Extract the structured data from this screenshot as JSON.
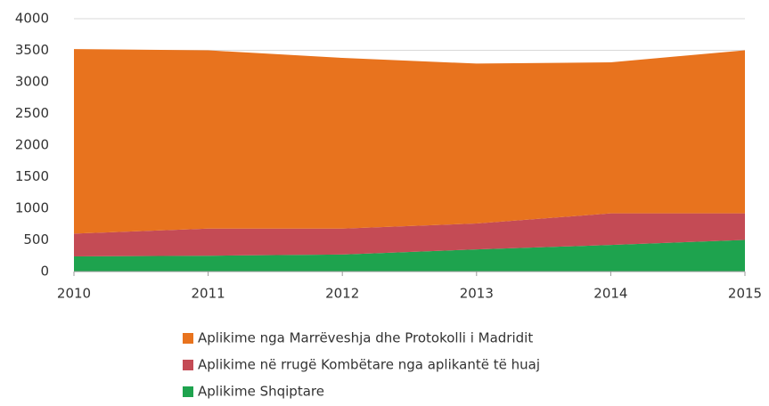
{
  "chart_data": {
    "type": "stacked_area",
    "x": [
      2010,
      2011,
      2012,
      2013,
      2014,
      2015
    ],
    "series": [
      {
        "name": "Aplikime nga Marrëveshja dhe Protokolli i Madridit",
        "color": "#e8731e",
        "values": [
          2920,
          2820,
          2700,
          2530,
          2390,
          2580
        ]
      },
      {
        "name": "Aplikime në rrugë Kombëtare nga aplikantë të huaj",
        "color": "#c44b55",
        "values": [
          360,
          430,
          410,
          410,
          500,
          420
        ]
      },
      {
        "name": "Aplikime Shqiptare",
        "color": "#1ea34e",
        "values": [
          240,
          250,
          270,
          350,
          420,
          500
        ]
      }
    ],
    "xlim": [
      2010,
      2015
    ],
    "xticks": [
      2010,
      2011,
      2012,
      2013,
      2014,
      2015
    ],
    "ylim": [
      0,
      4000
    ],
    "yticks": [
      0,
      500,
      1000,
      1500,
      2000,
      2500,
      3000,
      3500,
      4000
    ],
    "grid": true
  }
}
